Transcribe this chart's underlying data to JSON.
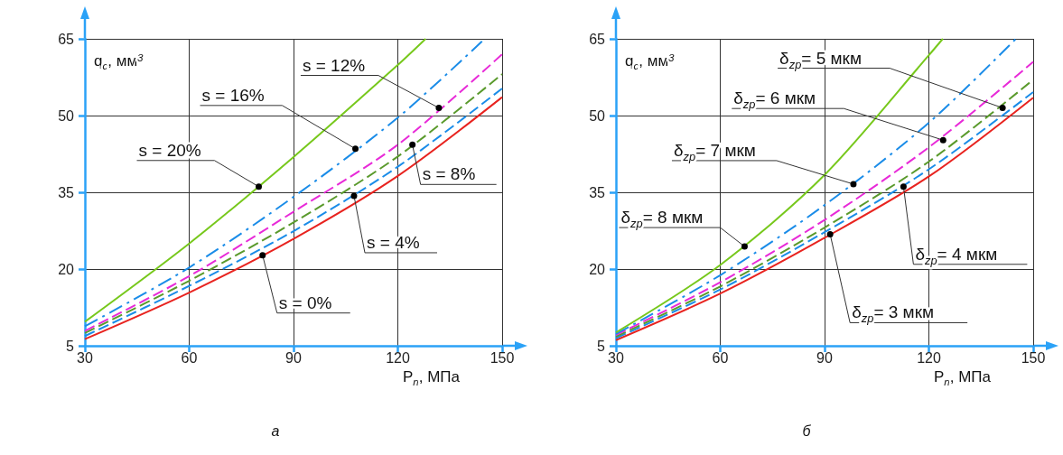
{
  "chart_data": [
    {
      "type": "line",
      "title": "а",
      "xlabel": "P$_{n}$, МПа",
      "ylabel": "q$_{c}$, мм$^{3}$",
      "xlim": [
        30,
        150
      ],
      "xticks": [
        30,
        60,
        90,
        120,
        150
      ],
      "ylim": [
        5,
        65
      ],
      "yticks": [
        5,
        20,
        35,
        50,
        65
      ],
      "grid": true,
      "marker": "none",
      "x": [
        30,
        60,
        90,
        120,
        150
      ],
      "series": [
        {
          "color": "#e8231f",
          "line_style": "solid",
          "values": [
            6.3,
            15.4,
            25.9,
            38.2,
            53.6
          ]
        },
        {
          "color": "#1a8ce8",
          "line_style": "dashed",
          "values": [
            6.9,
            16.7,
            27.4,
            40,
            55.3
          ]
        },
        {
          "color": "#5a9a2c",
          "line_style": "dashed",
          "values": [
            7.5,
            17.7,
            29.1,
            42,
            58.1
          ]
        },
        {
          "color": "#e82ad8",
          "line_style": "dashed",
          "values": [
            7.9,
            18.6,
            31.2,
            44.3,
            62
          ]
        },
        {
          "color": "#1a8ce8",
          "line_style": "dashdot",
          "x": [
            30,
            60,
            90,
            120,
            145
          ],
          "values": [
            8.8,
            20.3,
            34.1,
            49.6,
            65
          ]
        },
        {
          "color": "#77c81c",
          "line_style": "solid",
          "x": [
            30,
            60,
            90,
            120,
            128
          ],
          "values": [
            9.7,
            25,
            41.9,
            59.9,
            65
          ]
        }
      ],
      "annotations": [
        {
          "text": "s = 20%",
          "x": 80,
          "y": 36.1
        },
        {
          "text": "s = 16%",
          "x": 107.8,
          "y": 43.5
        },
        {
          "text": "s = 12%",
          "x": 131.8,
          "y": 51.5
        },
        {
          "text": "s = 8%",
          "x": 124.2,
          "y": 44.3
        },
        {
          "text": "s = 4%",
          "x": 107.4,
          "y": 34.3
        },
        {
          "text": "s = 0%",
          "x": 81.1,
          "y": 22.7
        }
      ]
    },
    {
      "type": "line",
      "title": "б",
      "xlabel": "P$_{n}$, МПа",
      "ylabel": "q$_{c}$, мм$^{3}$",
      "xlim": [
        30,
        150
      ],
      "xticks": [
        30,
        60,
        90,
        120,
        150
      ],
      "ylim": [
        5,
        65
      ],
      "yticks": [
        5,
        20,
        35,
        50,
        65
      ],
      "grid": true,
      "marker": "none",
      "x": [
        30,
        60,
        90,
        120,
        150
      ],
      "series": [
        {
          "color": "#e8231f",
          "line_style": "solid",
          "values": [
            6.1,
            15.2,
            26.1,
            38.1,
            53.5
          ]
        },
        {
          "color": "#1a8ce8",
          "line_style": "dashed",
          "values": [
            6.5,
            16,
            27.2,
            39.5,
            54.6
          ]
        },
        {
          "color": "#5a9a2c",
          "line_style": "dashed",
          "values": [
            6.8,
            16.6,
            28.1,
            41,
            57
          ]
        },
        {
          "color": "#e82ad8",
          "line_style": "dashed",
          "values": [
            7.1,
            17.4,
            29.6,
            43.8,
            60.5
          ]
        },
        {
          "color": "#1a8ce8",
          "line_style": "dashdot",
          "x": [
            30,
            60,
            90,
            120,
            145
          ],
          "values": [
            7.3,
            18.8,
            32.5,
            48.6,
            65
          ]
        },
        {
          "color": "#77c81c",
          "line_style": "solid",
          "x": [
            30,
            60,
            90,
            120,
            124
          ],
          "values": [
            7.6,
            20.8,
            38.4,
            61.8,
            65
          ]
        }
      ],
      "annotations": [
        {
          "text": "δ$_{zp}$= 5 мкм",
          "x": 141.2,
          "y": 51.5
        },
        {
          "text": "δ$_{zp}$= 6 мкм",
          "x": 124.1,
          "y": 45.2
        },
        {
          "text": "δ$_{zp}$= 7 мкм",
          "x": 98.3,
          "y": 36.6
        },
        {
          "text": "δ$_{zp}$= 8 мкм",
          "x": 67,
          "y": 24.4
        },
        {
          "text": "δ$_{zp}$= 4 мкм",
          "x": 112.7,
          "y": 36.1
        },
        {
          "text": "δ$_{zp}$= 3 мкм",
          "x": 91.6,
          "y": 26.8
        }
      ]
    }
  ]
}
